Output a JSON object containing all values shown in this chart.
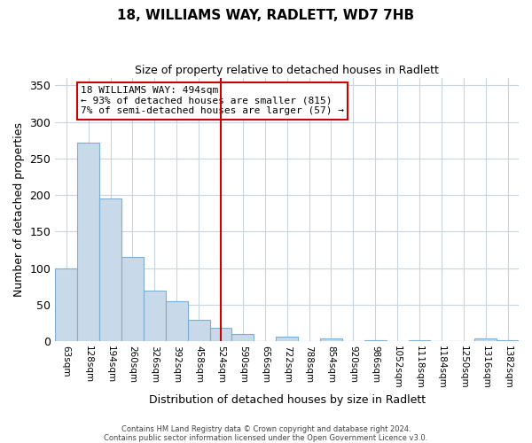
{
  "title": "18, WILLIAMS WAY, RADLETT, WD7 7HB",
  "subtitle": "Size of property relative to detached houses in Radlett",
  "xlabel": "Distribution of detached houses by size in Radlett",
  "ylabel": "Number of detached properties",
  "bin_labels": [
    "63sqm",
    "128sqm",
    "194sqm",
    "260sqm",
    "326sqm",
    "392sqm",
    "458sqm",
    "524sqm",
    "590sqm",
    "656sqm",
    "722sqm",
    "788sqm",
    "854sqm",
    "920sqm",
    "986sqm",
    "1052sqm",
    "1118sqm",
    "1184sqm",
    "1250sqm",
    "1316sqm",
    "1382sqm"
  ],
  "bar_heights": [
    100,
    272,
    195,
    115,
    69,
    55,
    29,
    18,
    10,
    0,
    6,
    0,
    4,
    0,
    2,
    0,
    2,
    0,
    0,
    4,
    2
  ],
  "bar_color": "#c8d9ea",
  "bar_edge_color": "#7bafd4",
  "property_line_x": 7,
  "annotation_text_line1": "18 WILLIAMS WAY: 494sqm",
  "annotation_text_line2": "← 93% of detached houses are smaller (815)",
  "annotation_text_line3": "7% of semi-detached houses are larger (57) →",
  "vline_color": "#cc0000",
  "annotation_box_color": "#ffffff",
  "annotation_box_edgecolor": "#cc0000",
  "ylim": [
    0,
    360
  ],
  "yticks": [
    0,
    50,
    100,
    150,
    200,
    250,
    300,
    350
  ],
  "footer_line1": "Contains HM Land Registry data © Crown copyright and database right 2024.",
  "footer_line2": "Contains public sector information licensed under the Open Government Licence v3.0.",
  "background_color": "#ffffff",
  "grid_color": "#c8d4e0"
}
